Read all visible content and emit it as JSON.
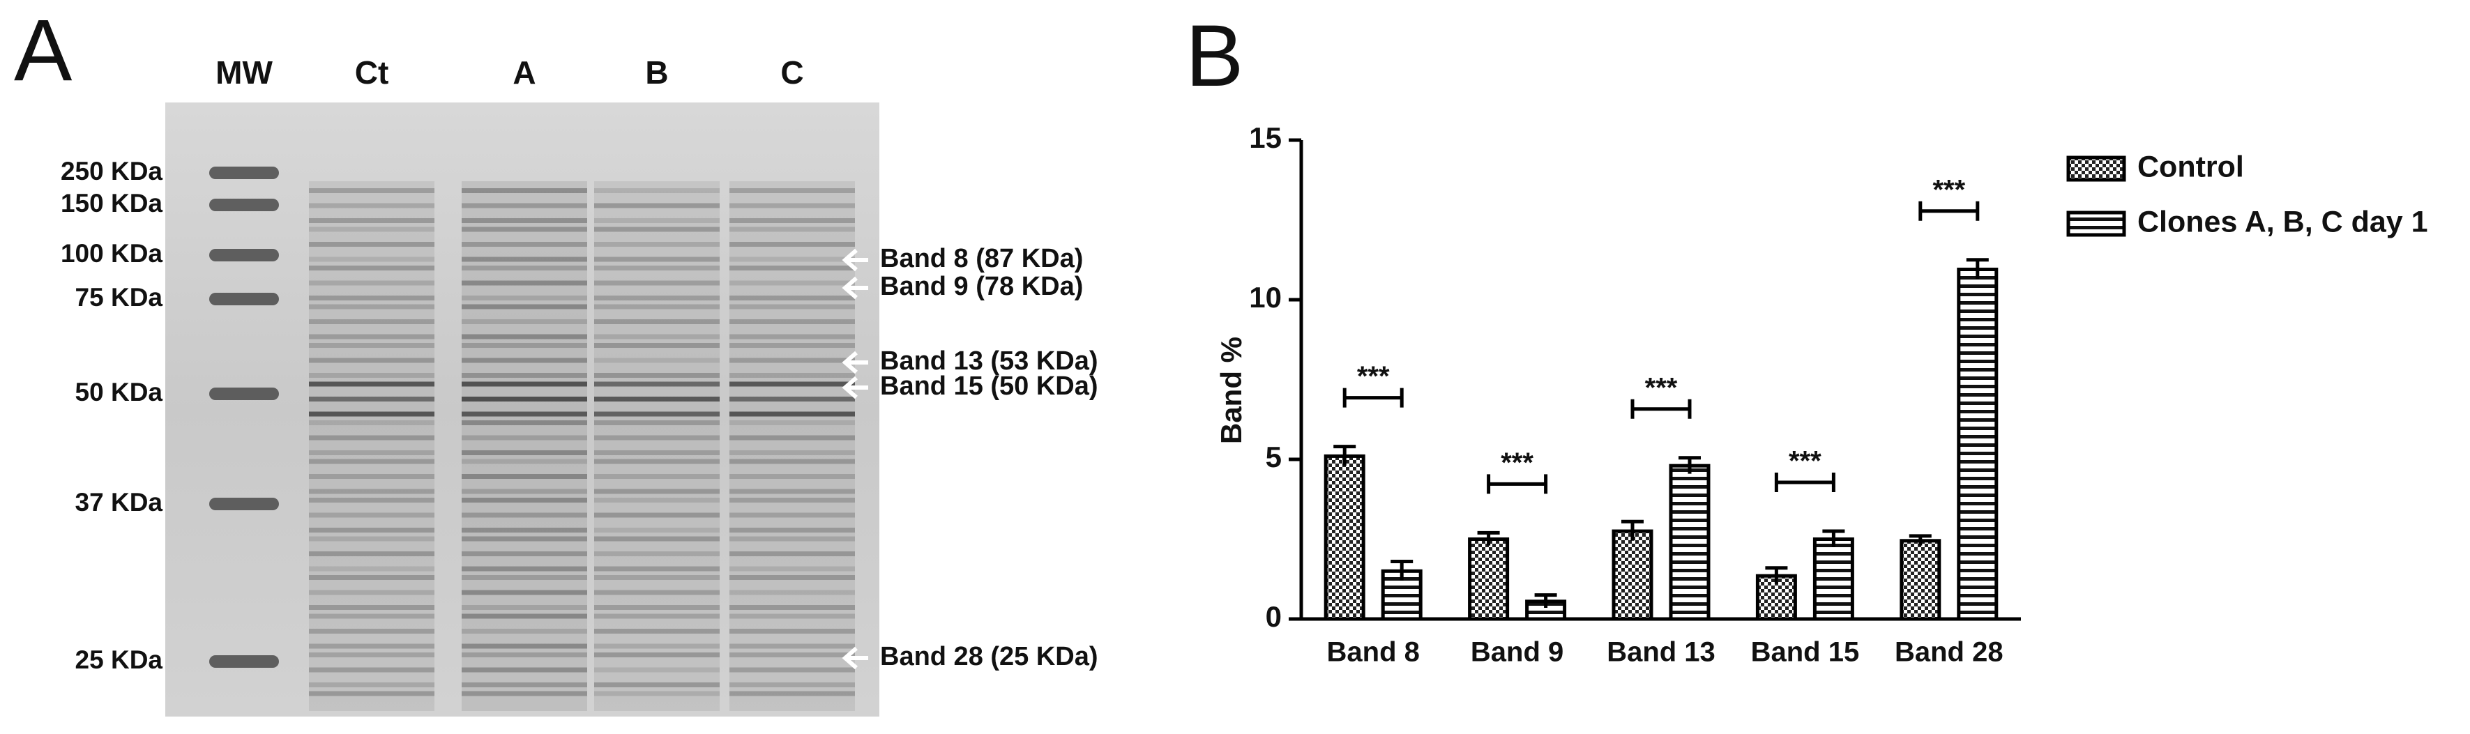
{
  "panel_a": {
    "label": "A",
    "lanes": [
      "MW",
      "Ct",
      "A",
      "B",
      "C"
    ],
    "mw_markers": [
      "250 KDa",
      "150 KDa",
      "100 KDa",
      "75 KDa",
      "50 KDa",
      "37 KDa",
      "25 KDa"
    ],
    "band_annotations": [
      "Band 8 (87 KDa)",
      "Band 9 (78 KDa)",
      "Band 13 (53 KDa)",
      "Band 15 (50 KDa)",
      "Band 28 (25 KDa)"
    ]
  },
  "chart_data": {
    "type": "bar",
    "panel_label": "B",
    "y_label": "Band %",
    "categories": [
      "Band 8",
      "Band 9",
      "Band 13",
      "Band 15",
      "Band 28"
    ],
    "series": [
      {
        "name": "Control",
        "color": "#000000",
        "pattern": "checker",
        "values": [
          5.1,
          2.5,
          2.75,
          1.35,
          2.45
        ],
        "errors": [
          0.3,
          0.2,
          0.3,
          0.25,
          0.15
        ]
      },
      {
        "name": "Clones A, B, C day 1",
        "color": "#000000",
        "pattern": "hstripe",
        "values": [
          1.5,
          0.55,
          4.8,
          2.5,
          10.95
        ],
        "errors": [
          0.3,
          0.2,
          0.25,
          0.25,
          0.3
        ]
      }
    ],
    "significance": [
      "***",
      "***",
      "***",
      "***",
      "***"
    ],
    "ylim": [
      0,
      15
    ],
    "yticks": [
      0,
      5,
      10,
      15
    ],
    "grid": false
  }
}
